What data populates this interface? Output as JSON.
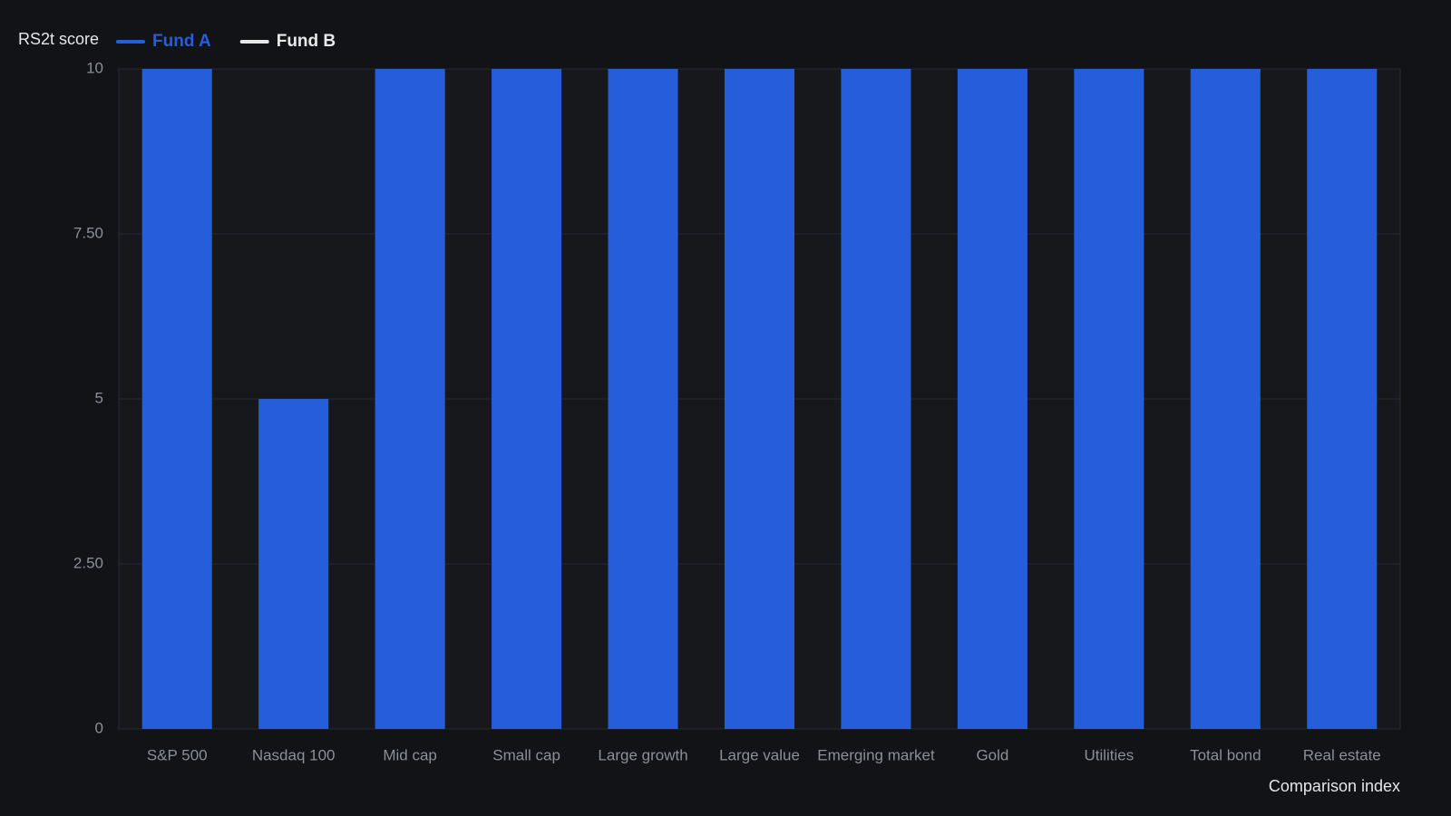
{
  "chart_data": {
    "type": "bar",
    "y_label": "RS2t score",
    "x_label": "Comparison index",
    "categories": [
      "S&P 500",
      "Nasdaq 100",
      "Mid cap",
      "Small cap",
      "Large growth",
      "Large value",
      "Emerging market",
      "Gold",
      "Utilities",
      "Total bond",
      "Real estate"
    ],
    "series": [
      {
        "name": "Fund A",
        "color": "#255ddb",
        "values": [
          10,
          5,
          10,
          10,
          10,
          10,
          10,
          10,
          10,
          10,
          10
        ]
      },
      {
        "name": "Fund B",
        "color": "#e8e8e8",
        "values": [
          0,
          0,
          0,
          0,
          0,
          0,
          0,
          0,
          0,
          0,
          0
        ]
      }
    ],
    "ylim": [
      0,
      10
    ],
    "yticks": [
      0,
      {
        "value": 2.5,
        "label": "2.50"
      },
      5,
      {
        "value": 7.5,
        "label": "7.50"
      },
      10
    ],
    "grid": true,
    "legend": "top-left"
  }
}
